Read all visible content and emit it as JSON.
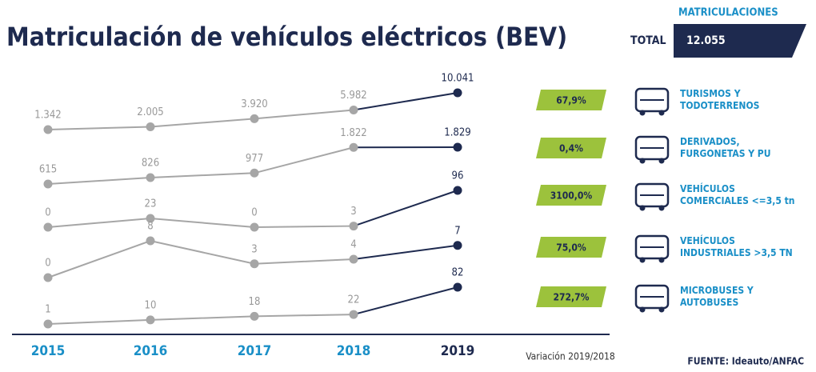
{
  "title": "Matriculación de vehículos eléctricos (BEV)",
  "total": {
    "heading": "MATRICULACIONES",
    "label": "TOTAL",
    "value": "12.055"
  },
  "source": "FUENTE: Ideauto/ANFAC",
  "chart_data": {
    "type": "line",
    "categories": [
      "2015",
      "2016",
      "2017",
      "2018",
      "2019"
    ],
    "color": "#a6a6a6",
    "highlight_color": "#1e2a4f",
    "category_color": "#1a8fc7",
    "series": [
      {
        "name": "TURISMOS Y TODOTERRENOS",
        "values": [
          1342,
          2005,
          3920,
          5982,
          10041
        ],
        "value_labels": [
          "1.342",
          "2.005",
          "3.920",
          "5.982",
          "10.041"
        ]
      },
      {
        "name": "DERIVADOS, FURGONETAS Y PU",
        "values": [
          615,
          826,
          977,
          1822,
          1829
        ],
        "value_labels": [
          "615",
          "826",
          "977",
          "1.822",
          "1.829"
        ]
      },
      {
        "name": "VEHÍCULOS COMERCIALES <=3,5 tn",
        "values": [
          0,
          23,
          0,
          3,
          96
        ]
      },
      {
        "name": "VEHÍCULOS INDUSTRIALES >3,5 TN",
        "values": [
          0,
          8,
          3,
          4,
          7
        ]
      },
      {
        "name": "MICROBUSES Y AUTOBUSES",
        "values": [
          1,
          10,
          18,
          22,
          82
        ]
      }
    ],
    "variation": {
      "title": "Variación 2019/2018",
      "color": "#9cc23c",
      "values": [
        67.9,
        0.4,
        3100.0,
        75.0,
        272.7
      ],
      "value_labels": [
        "67,9%",
        "0,4%",
        "3100,0%",
        "75,0%",
        "272,7%"
      ]
    }
  }
}
